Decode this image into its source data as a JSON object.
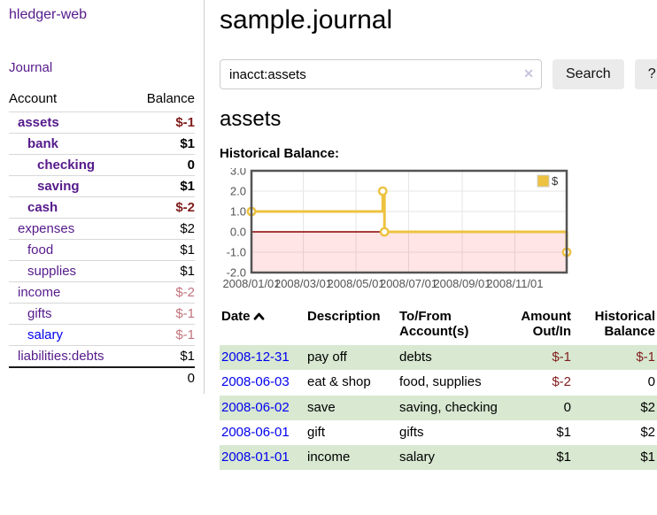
{
  "theme": {
    "purple": "#551A8B",
    "blue": "#0000EE",
    "neg": "#801d1d",
    "negsoft": "#c3737d",
    "rowgreen": "#d8e8d1",
    "gold": "#EDC240",
    "gridline": "#e6e6e6",
    "chartborder": "#545454",
    "axistext": "#545454",
    "zeroline": "#8b0000",
    "negfill": "rgba(255,0,0,0.10)"
  },
  "sidebar": {
    "brand": "hledger-web",
    "journal_link": "Journal",
    "accounts_table": {
      "account_header": "Account",
      "balance_header": "Balance",
      "rows": [
        {
          "name": "assets",
          "level": 0,
          "bold": true,
          "link_color": "purple",
          "balance": "$-1",
          "balance_style": "neg-strong"
        },
        {
          "name": "bank",
          "level": 1,
          "bold": true,
          "link_color": "purple",
          "balance": "$1",
          "balance_style": ""
        },
        {
          "name": "checking",
          "level": 2,
          "bold": true,
          "link_color": "purple",
          "balance": "0",
          "balance_style": ""
        },
        {
          "name": "saving",
          "level": 2,
          "bold": true,
          "link_color": "purple",
          "balance": "$1",
          "balance_style": ""
        },
        {
          "name": "cash",
          "level": 1,
          "bold": true,
          "link_color": "purple",
          "balance": "$-2",
          "balance_style": "neg-strong"
        },
        {
          "name": "expenses",
          "level": 0,
          "bold": false,
          "link_color": "purple",
          "balance": "$2",
          "balance_style": ""
        },
        {
          "name": "food",
          "level": 1,
          "bold": false,
          "link_color": "purple",
          "balance": "$1",
          "balance_style": ""
        },
        {
          "name": "supplies",
          "level": 1,
          "bold": false,
          "link_color": "purple",
          "balance": "$1",
          "balance_style": ""
        },
        {
          "name": "income",
          "level": 0,
          "bold": false,
          "link_color": "purple",
          "balance": "$-2",
          "balance_style": "neg-soft"
        },
        {
          "name": "gifts",
          "level": 1,
          "bold": false,
          "link_color": "purple",
          "balance": "$-1",
          "balance_style": "neg-soft"
        },
        {
          "name": "salary",
          "level": 1,
          "bold": false,
          "link_color": "blue",
          "balance": "$-1",
          "balance_style": "neg-soft"
        },
        {
          "name": "liabilities:debts",
          "level": 0,
          "bold": false,
          "link_color": "purple",
          "balance": "$1",
          "balance_style": ""
        }
      ],
      "total": "0"
    }
  },
  "main": {
    "title": "sample.journal",
    "search": {
      "value": "inacct:assets",
      "clear_icon": "✕",
      "search_label": "Search",
      "help_label": "?"
    },
    "account_heading": "assets",
    "chart_label": "Historical Balance:",
    "register": {
      "headers": {
        "date": "Date",
        "description": "Description",
        "accounts": "To/From Account(s)",
        "amount": "Amount Out/In",
        "balance": "Historical Balance"
      },
      "rows": [
        {
          "date": "2008-12-31",
          "description": "pay off",
          "accounts": "debts",
          "amount": "$-1",
          "amount_neg": true,
          "balance": "$-1",
          "balance_neg": true,
          "shaded": true
        },
        {
          "date": "2008-06-03",
          "description": "eat & shop",
          "accounts": "food, supplies",
          "amount": "$-2",
          "amount_neg": true,
          "balance": "0",
          "balance_neg": false,
          "shaded": false
        },
        {
          "date": "2008-06-02",
          "description": "save",
          "accounts": "saving, checking",
          "amount": "0",
          "amount_neg": false,
          "balance": "$2",
          "balance_neg": false,
          "shaded": true
        },
        {
          "date": "2008-06-01",
          "description": "gift",
          "accounts": "gifts",
          "amount": "$1",
          "amount_neg": false,
          "balance": "$2",
          "balance_neg": false,
          "shaded": false
        },
        {
          "date": "2008-01-01",
          "description": "income",
          "accounts": "salary",
          "amount": "$1",
          "amount_neg": false,
          "balance": "$1",
          "balance_neg": false,
          "shaded": true
        }
      ]
    }
  },
  "chart_data": {
    "type": "line",
    "title": "Historical Balance",
    "legend": [
      {
        "label": "$",
        "color": "#EDC240"
      }
    ],
    "legend_position": "top-right",
    "grid": true,
    "step": true,
    "x_min": "2008-01-01",
    "x_max": "2008-12-31",
    "x_ticks": [
      "2008/01/01",
      "2008/03/01",
      "2008/05/01",
      "2008/07/01",
      "2008/09/01",
      "2008/11/01"
    ],
    "ylim": [
      -2,
      3
    ],
    "y_ticks": [
      3.0,
      2.0,
      1.0,
      0.0,
      -1.0,
      -2.0
    ],
    "y_tick_labels": [
      "3.0",
      "2.0",
      "1.0",
      "0.0",
      "-1.0",
      "-2.0"
    ],
    "negative_region_shaded": true,
    "series": [
      {
        "name": "$",
        "points": [
          [
            "2008-01-01",
            1
          ],
          [
            "2008-06-01",
            2
          ],
          [
            "2008-06-03",
            0
          ],
          [
            "2008-12-31",
            -1
          ]
        ]
      }
    ]
  }
}
